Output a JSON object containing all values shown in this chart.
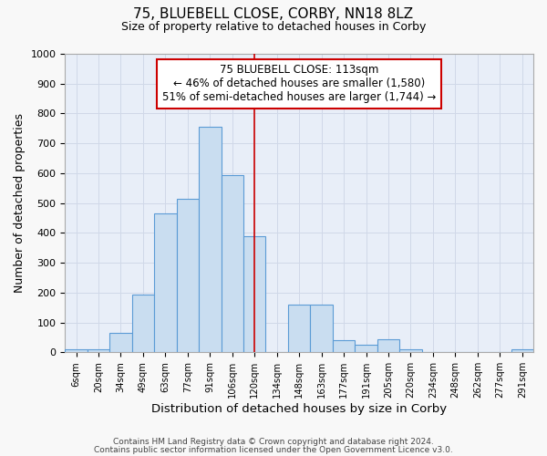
{
  "title_line1": "75, BLUEBELL CLOSE, CORBY, NN18 8LZ",
  "title_line2": "Size of property relative to detached houses in Corby",
  "xlabel": "Distribution of detached houses by size in Corby",
  "ylabel": "Number of detached properties",
  "categories": [
    "6sqm",
    "20sqm",
    "34sqm",
    "49sqm",
    "63sqm",
    "77sqm",
    "91sqm",
    "106sqm",
    "120sqm",
    "134sqm",
    "148sqm",
    "163sqm",
    "177sqm",
    "191sqm",
    "205sqm",
    "220sqm",
    "234sqm",
    "248sqm",
    "262sqm",
    "277sqm",
    "291sqm"
  ],
  "values": [
    10,
    10,
    65,
    195,
    465,
    515,
    755,
    595,
    390,
    0,
    160,
    160,
    40,
    25,
    45,
    10,
    0,
    0,
    0,
    0,
    10
  ],
  "bar_color": "#c9ddf0",
  "bar_edge_color": "#5b9bd5",
  "highlight_line_color": "#cc0000",
  "annotation_text": "75 BLUEBELL CLOSE: 113sqm\n← 46% of detached houses are smaller (1,580)\n51% of semi-detached houses are larger (1,744) →",
  "annotation_box_color": "#ffffff",
  "annotation_box_edge": "#cc0000",
  "ylim": [
    0,
    1000
  ],
  "grid_color": "#d0d8e8",
  "bg_color": "#e8eef8",
  "footer1": "Contains HM Land Registry data © Crown copyright and database right 2024.",
  "footer2": "Contains public sector information licensed under the Open Government Licence v3.0.",
  "red_line_index": 8
}
